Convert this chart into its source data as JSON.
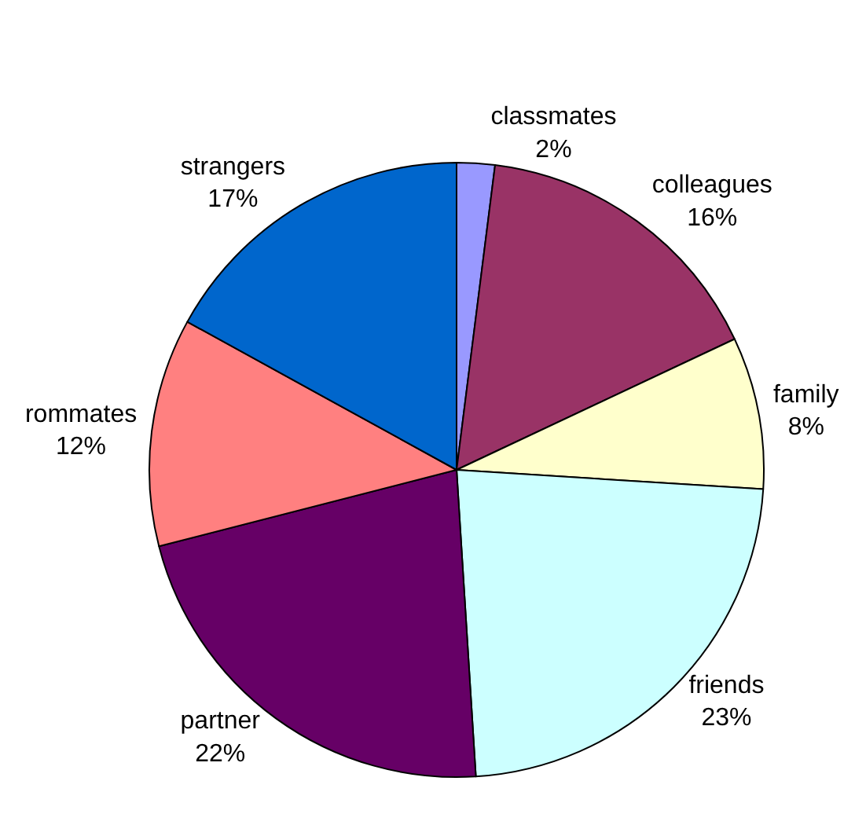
{
  "chart_data": {
    "type": "pie",
    "categories": [
      "classmates",
      "colleagues",
      "family",
      "friends",
      "partner",
      "rommates",
      "strangers"
    ],
    "values": [
      2,
      16,
      8,
      23,
      22,
      12,
      17
    ],
    "value_labels": [
      "2%",
      "16%",
      "8%",
      "23%",
      "22%",
      "12%",
      "17%"
    ],
    "colors": [
      "#9999ff",
      "#993366",
      "#ffffcc",
      "#ccffff",
      "#660066",
      "#ff8080",
      "#0066cc"
    ],
    "legend": false
  }
}
